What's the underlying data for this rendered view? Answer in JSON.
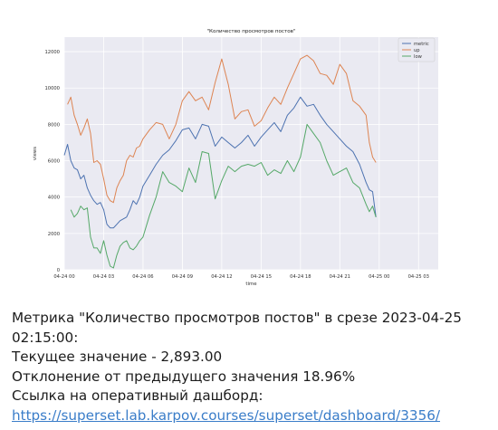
{
  "message": {
    "metric_line": "Метрика \"Количество просмотров постов\" в срезе 2023-04-25 02:15:00:",
    "current_value_line": "Текущее значение - 2,893.00",
    "deviation_line": "Отклонение от предыдущего значения 18.96%",
    "dashboard_line": "Ссылка на оперативный дашборд:",
    "dashboard_link": "https://superset.lab.karpov.courses/superset/dashboard/3356/"
  },
  "colors": {
    "metric": "#4c72b0",
    "up": "#dd8452",
    "low": "#55a868",
    "plot_bg": "#eaeaf2",
    "grid": "#ffffff",
    "link": "#3a7dc9"
  },
  "chart_data": {
    "type": "line",
    "title": "\"Количество просмотров постов\"",
    "xlabel": "time",
    "ylabel": "views",
    "x_range": [
      0,
      23.75
    ],
    "ylim": [
      0,
      12800
    ],
    "y_ticks": [
      0,
      2000,
      4000,
      6000,
      8000,
      10000,
      12000
    ],
    "x_ticks": [
      {
        "x": 0,
        "label": "04-24 00"
      },
      {
        "x": 3,
        "label": "04-24 03"
      },
      {
        "x": 6,
        "label": "04-24 06"
      },
      {
        "x": 9,
        "label": "04-24 09"
      },
      {
        "x": 12,
        "label": "04-24 12"
      },
      {
        "x": 15,
        "label": "04-24 15"
      },
      {
        "x": 18,
        "label": "04-24 18"
      },
      {
        "x": 21,
        "label": "04-24 21"
      },
      {
        "x": 24,
        "label": "04-25 00"
      },
      {
        "x": 27,
        "label": "04-25 03"
      }
    ],
    "grid": true,
    "legend": "top-right",
    "series": [
      {
        "name": "metric",
        "x": [
          0,
          0.25,
          0.5,
          0.75,
          1,
          1.25,
          1.5,
          1.75,
          2,
          2.25,
          2.5,
          2.75,
          3,
          3.25,
          3.5,
          3.75,
          4,
          4.25,
          4.5,
          4.75,
          5,
          5.25,
          5.5,
          5.75,
          6,
          6.5,
          7,
          7.5,
          8,
          8.5,
          9,
          9.5,
          10,
          10.5,
          11,
          11.5,
          12,
          12.5,
          13,
          13.5,
          14,
          14.5,
          15,
          15.5,
          16,
          16.5,
          17,
          17.5,
          18,
          18.5,
          19,
          19.5,
          20,
          20.5,
          21,
          21.5,
          22,
          22.5,
          23,
          23.25,
          23.5,
          23.75
        ],
        "values": [
          6300,
          6900,
          6000,
          5600,
          5500,
          5000,
          5200,
          4500,
          4100,
          3800,
          3600,
          3700,
          3300,
          2500,
          2300,
          2300,
          2500,
          2700,
          2800,
          2900,
          3300,
          3800,
          3600,
          4000,
          4600,
          5200,
          5800,
          6300,
          6600,
          7100,
          7700,
          7800,
          7200,
          8000,
          7900,
          6800,
          7300,
          7000,
          6700,
          7000,
          7400,
          6800,
          7300,
          7700,
          8100,
          7600,
          8500,
          8900,
          9500,
          9000,
          9100,
          8500,
          8000,
          7600,
          7200,
          6800,
          6500,
          5800,
          4800,
          4400,
          4300,
          2900
        ]
      },
      {
        "name": "up",
        "x": [
          0.25,
          0.5,
          0.75,
          1,
          1.25,
          1.5,
          1.75,
          2,
          2.25,
          2.5,
          2.75,
          3,
          3.25,
          3.5,
          3.75,
          4,
          4.25,
          4.5,
          4.75,
          5,
          5.25,
          5.5,
          5.75,
          6,
          6.5,
          7,
          7.5,
          8,
          8.5,
          9,
          9.5,
          10,
          10.5,
          11,
          11.5,
          12,
          12.5,
          13,
          13.5,
          14,
          14.5,
          15,
          15.5,
          16,
          16.5,
          17,
          17.5,
          18,
          18.5,
          19,
          19.5,
          20,
          20.5,
          21,
          21.5,
          22,
          22.5,
          23,
          23.25,
          23.5,
          23.75
        ],
        "values": [
          9100,
          9500,
          8500,
          8000,
          7400,
          7800,
          8300,
          7500,
          5900,
          6000,
          5800,
          5000,
          4100,
          3800,
          3700,
          4500,
          4900,
          5200,
          6000,
          6300,
          6200,
          6700,
          6800,
          7200,
          7700,
          8100,
          8000,
          7200,
          8000,
          9300,
          9800,
          9300,
          9500,
          8800,
          10300,
          11600,
          10200,
          8300,
          8700,
          8800,
          7900,
          8200,
          8900,
          9500,
          9100,
          10000,
          10800,
          11600,
          11800,
          11500,
          10800,
          10700,
          10200,
          11300,
          10800,
          9300,
          9000,
          8500,
          7000,
          6200,
          5900
        ]
      },
      {
        "name": "low",
        "x": [
          0.5,
          0.75,
          1,
          1.25,
          1.5,
          1.75,
          2,
          2.25,
          2.5,
          2.75,
          3,
          3.25,
          3.5,
          3.75,
          4,
          4.25,
          4.5,
          4.75,
          5,
          5.25,
          5.5,
          5.75,
          6,
          6.5,
          7,
          7.5,
          8,
          8.5,
          9,
          9.5,
          10,
          10.5,
          11,
          11.5,
          12,
          12.5,
          13,
          13.5,
          14,
          14.5,
          15,
          15.5,
          16,
          16.5,
          17,
          17.5,
          18,
          18.5,
          19,
          19.5,
          20,
          20.5,
          21,
          21.5,
          22,
          22.5,
          23,
          23.25,
          23.5,
          23.75
        ],
        "values": [
          3300,
          2900,
          3100,
          3500,
          3300,
          3400,
          1800,
          1200,
          1200,
          900,
          1600,
          800,
          200,
          100,
          800,
          1300,
          1500,
          1600,
          1200,
          1100,
          1300,
          1600,
          1800,
          3000,
          4000,
          5400,
          4800,
          4600,
          4300,
          5600,
          4800,
          6500,
          6400,
          3900,
          4900,
          5700,
          5400,
          5700,
          5800,
          5700,
          5900,
          5200,
          5500,
          5300,
          6000,
          5400,
          6200,
          8000,
          7500,
          7000,
          6000,
          5200,
          5400,
          5600,
          4800,
          4500,
          3600,
          3200,
          3500,
          2900
        ]
      }
    ]
  }
}
